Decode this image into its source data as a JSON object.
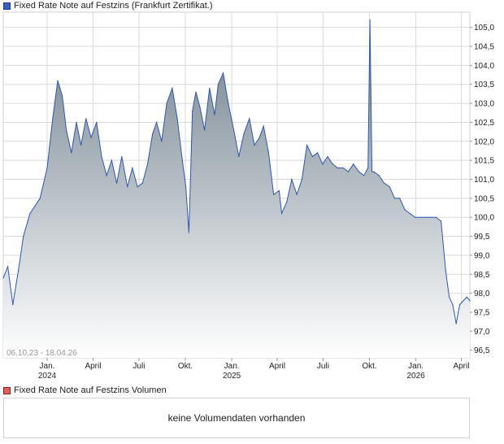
{
  "legend": {
    "price": "Fixed Rate Note auf Festzins (Frankfurt Zertifikat.)",
    "volume": "Fixed Rate Note auf Festzins Volumen"
  },
  "date_range": "06.10.23 - 18.04.26",
  "volume_message": "keine Volumendaten vorhanden",
  "colors": {
    "line": "#2f56b0",
    "area_top": "#6f7f8b",
    "area_bottom": "#ffffff",
    "grid": "#d9d9d9"
  },
  "chart_data": {
    "type": "area",
    "series": [
      {
        "name": "Fixed Rate Note auf Festzins (Frankfurt Zertifikat.)",
        "x": [
          "2023-10-06",
          "2023-10-15",
          "2023-10-25",
          "2023-11-05",
          "2023-11-15",
          "2023-11-28",
          "2023-12-08",
          "2023-12-18",
          "2024-01-01",
          "2024-01-12",
          "2024-01-22",
          "2024-01-31",
          "2024-02-08",
          "2024-02-18",
          "2024-02-28",
          "2024-03-08",
          "2024-03-18",
          "2024-03-28",
          "2024-04-08",
          "2024-04-18",
          "2024-04-28",
          "2024-05-08",
          "2024-05-18",
          "2024-05-28",
          "2024-06-08",
          "2024-06-18",
          "2024-06-28",
          "2024-07-08",
          "2024-07-18",
          "2024-07-28",
          "2024-08-05",
          "2024-08-15",
          "2024-08-25",
          "2024-09-05",
          "2024-09-15",
          "2024-09-25",
          "2024-10-02",
          "2024-10-08",
          "2024-10-15",
          "2024-10-22",
          "2024-10-30",
          "2024-11-08",
          "2024-11-18",
          "2024-11-28",
          "2024-12-05",
          "2024-12-15",
          "2024-12-25",
          "2025-01-05",
          "2025-01-15",
          "2025-01-25",
          "2025-02-05",
          "2025-02-15",
          "2025-02-25",
          "2025-03-05",
          "2025-03-15",
          "2025-03-25",
          "2025-04-05",
          "2025-04-10",
          "2025-04-20",
          "2025-04-30",
          "2025-05-10",
          "2025-05-20",
          "2025-05-30",
          "2025-06-10",
          "2025-06-20",
          "2025-06-30",
          "2025-07-10",
          "2025-07-20",
          "2025-07-30",
          "2025-08-10",
          "2025-08-20",
          "2025-08-30",
          "2025-09-10",
          "2025-09-20",
          "2025-09-28",
          "2025-10-02",
          "2025-10-06",
          "2025-10-10",
          "2025-10-20",
          "2025-10-30",
          "2025-11-10",
          "2025-11-20",
          "2025-11-30",
          "2025-12-10",
          "2025-12-20",
          "2025-12-30",
          "2026-01-10",
          "2026-01-20",
          "2026-01-30",
          "2026-02-10",
          "2026-02-20",
          "2026-03-01",
          "2026-03-08",
          "2026-03-15",
          "2026-03-22",
          "2026-03-29",
          "2026-04-05",
          "2026-04-12",
          "2026-04-18"
        ],
        "values": [
          98.4,
          98.7,
          97.7,
          98.6,
          99.5,
          100.1,
          100.3,
          100.5,
          101.3,
          102.6,
          103.6,
          103.2,
          102.3,
          101.7,
          102.5,
          101.9,
          102.6,
          102.1,
          102.5,
          101.6,
          101.1,
          101.5,
          100.9,
          101.6,
          100.8,
          101.3,
          100.8,
          100.9,
          101.4,
          102.2,
          102.5,
          102.0,
          103.0,
          103.4,
          102.6,
          101.5,
          100.8,
          99.6,
          102.8,
          103.3,
          102.9,
          102.3,
          103.4,
          102.7,
          103.5,
          103.8,
          103.0,
          102.3,
          101.6,
          102.2,
          102.6,
          101.9,
          102.1,
          102.4,
          101.7,
          100.6,
          100.7,
          100.1,
          100.4,
          101.0,
          100.6,
          101.0,
          101.9,
          101.6,
          101.7,
          101.4,
          101.6,
          101.4,
          101.3,
          101.3,
          101.2,
          101.4,
          101.2,
          101.1,
          101.3,
          105.2,
          101.2,
          101.2,
          101.1,
          100.9,
          100.8,
          100.5,
          100.5,
          100.2,
          100.1,
          100.0,
          100.0,
          100.0,
          100.0,
          100.0,
          99.9,
          98.6,
          97.9,
          97.7,
          97.2,
          97.7,
          97.8,
          97.9,
          97.8
        ]
      }
    ],
    "x_ticks": [
      {
        "date": "2024-01-01",
        "label": "Jan.",
        "year": "2024"
      },
      {
        "date": "2024-04-01",
        "label": "April",
        "year": ""
      },
      {
        "date": "2024-07-01",
        "label": "Juli",
        "year": ""
      },
      {
        "date": "2024-10-01",
        "label": "Okt.",
        "year": ""
      },
      {
        "date": "2025-01-01",
        "label": "Jan.",
        "year": "2025"
      },
      {
        "date": "2025-04-01",
        "label": "April",
        "year": ""
      },
      {
        "date": "2025-07-01",
        "label": "Juli",
        "year": ""
      },
      {
        "date": "2025-10-01",
        "label": "Okt.",
        "year": ""
      },
      {
        "date": "2026-01-01",
        "label": "Jan.",
        "year": "2026"
      },
      {
        "date": "2026-04-01",
        "label": "April",
        "year": ""
      }
    ],
    "y_ticks": [
      96.5,
      97.0,
      97.5,
      98.0,
      98.5,
      99.0,
      99.5,
      100.0,
      100.5,
      101.0,
      101.5,
      102.0,
      102.5,
      103.0,
      103.5,
      104.0,
      104.5,
      105.0
    ],
    "x_range": [
      "2023-10-06",
      "2026-04-18"
    ],
    "ylim": [
      96.3,
      105.4
    ],
    "grid": true,
    "y_axis_position": "right",
    "legend_position": "top-left"
  }
}
